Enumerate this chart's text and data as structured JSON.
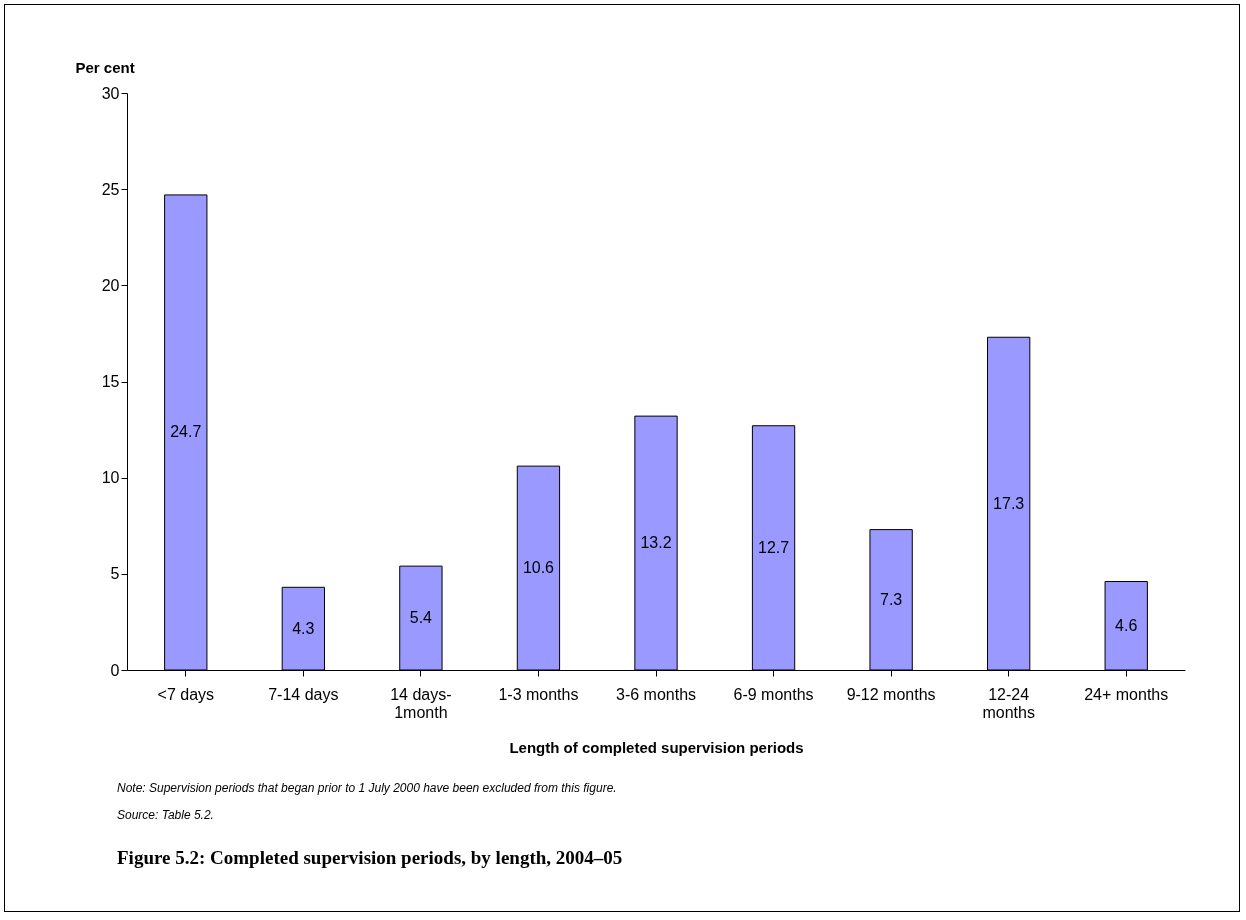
{
  "chart_data": {
    "type": "bar",
    "title": "Figure 5.2: Completed supervision periods, by length, 2004–05",
    "xlabel": "Length of completed supervision periods",
    "ylabel": "Per cent",
    "categories": [
      "<7 days",
      "7-14 days",
      "14 days-1month",
      "1-3 months",
      "3-6 months",
      "6-9 months",
      "9-12 months",
      "12-24 months",
      "24+ months"
    ],
    "values": [
      24.7,
      4.3,
      5.4,
      10.6,
      13.2,
      12.7,
      7.3,
      17.3,
      4.6
    ],
    "color": "#9999ff",
    "ylim": [
      0,
      30
    ],
    "yticks": [
      0,
      5,
      10,
      15,
      20,
      25,
      30
    ],
    "data_labels": true,
    "annotations": [
      "Note: Supervision periods that began prior to 1 July 2000 have been excluded from this figure.",
      "Source: Table 5.2."
    ]
  }
}
